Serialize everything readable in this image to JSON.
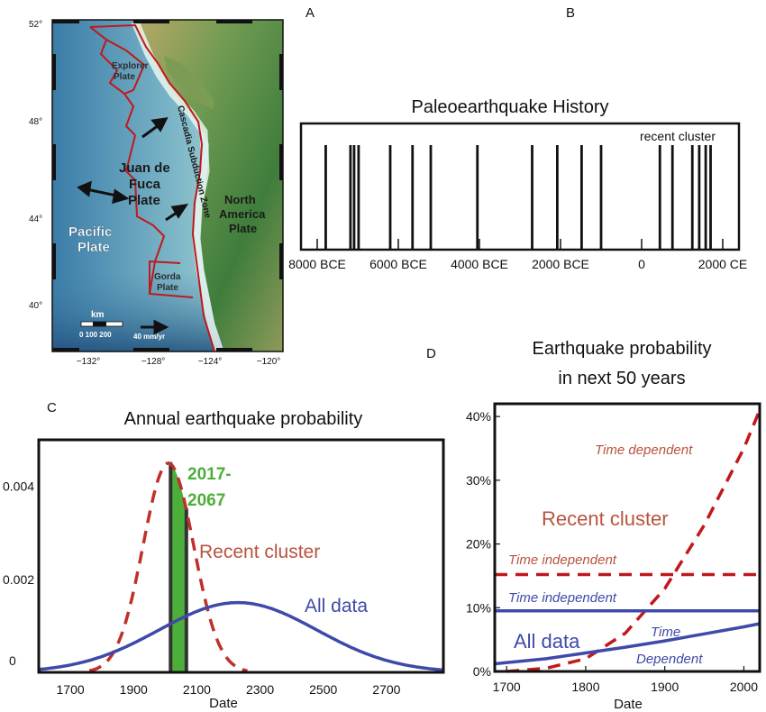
{
  "panel_letters": {
    "a": "A",
    "b": "B",
    "c": "C",
    "d": "D"
  },
  "map": {
    "lat_ticks": [
      "52°",
      "48°",
      "44°",
      "40°"
    ],
    "lon_ticks": [
      "−132°",
      "−128°",
      "−124°",
      "−120°"
    ],
    "labels": {
      "explorer": [
        "Explorer",
        "Plate"
      ],
      "juan_de_fuca": [
        "Juan de",
        "Fuca",
        "Plate"
      ],
      "pacific": [
        "Pacific",
        "Plate"
      ],
      "north_america": [
        "North",
        "America",
        "Plate"
      ],
      "gorda": [
        "Gorda",
        "Plate"
      ],
      "subduction": "Cascadia Subduction Zone",
      "scale_unit": "km",
      "scale_values": "0   100 200",
      "velocity": "40 mm/yr"
    },
    "colors": {
      "ocean_deep": "#2f6f9a",
      "ocean_shelf": "#bfe6d6",
      "land_low": "#3f7d3c",
      "land_high": "#a79a5a",
      "boundary": "#c0181c"
    }
  },
  "chart_data": [
    {
      "panel": "B",
      "type": "event-timeline",
      "title": "Paleoearthquake History",
      "annotation": "recent cluster",
      "x_tick_labels": [
        "8000 BCE",
        "6000 BCE",
        "4000 BCE",
        "2000 BCE",
        "0",
        "2000 CE"
      ],
      "x_ticks": [
        -8000,
        -6000,
        -4000,
        -2000,
        0,
        2000
      ],
      "xlim": [
        -8400,
        2400
      ],
      "events_year": [
        -7790,
        -7180,
        -7090,
        -6980,
        -6200,
        -5650,
        -5200,
        -4050,
        -2700,
        -2080,
        -1480,
        -1000,
        450,
        760,
        1250,
        1420,
        1580,
        1700
      ]
    },
    {
      "panel": "C",
      "type": "line",
      "title": "Annual earthquake probability",
      "xlabel": "Date",
      "x_tick_labels": [
        "1700",
        "1900",
        "2100",
        "2300",
        "2500",
        "2700"
      ],
      "x_ticks": [
        1700,
        1900,
        2100,
        2300,
        2500,
        2700
      ],
      "y_tick_labels": [
        "0",
        "0.002",
        "0.004"
      ],
      "y_ticks": [
        0,
        0.002,
        0.004
      ],
      "xlim": [
        1600,
        2880
      ],
      "ylim": [
        0,
        0.005
      ],
      "highlight": {
        "label_line1": "2017-",
        "label_line2": "2067",
        "x_start": 2017,
        "x_end": 2067,
        "color": "#4caf3a"
      },
      "series": [
        {
          "name": "Recent cluster",
          "style": "dashed",
          "color": "#c0302a",
          "model": "gaussian",
          "peak_x": 2010,
          "peak_y": 0.0045,
          "sigma": 80
        },
        {
          "name": "All data",
          "style": "solid",
          "color": "#3f4aa8",
          "model": "gaussian",
          "peak_x": 2230,
          "peak_y": 0.0015,
          "sigma": 250
        }
      ]
    },
    {
      "panel": "D",
      "type": "line",
      "title_lines": [
        "Earthquake probability",
        "in next 50 years"
      ],
      "xlabel": "Date",
      "x_tick_labels": [
        "1700",
        "1800",
        "1900",
        "2000"
      ],
      "x_ticks": [
        1700,
        1800,
        1900,
        2000
      ],
      "y_tick_labels": [
        "0%",
        "10%",
        "20%",
        "30%",
        "40%"
      ],
      "y_ticks": [
        0,
        10,
        20,
        30,
        40
      ],
      "xlim": [
        1685,
        2020
      ],
      "ylim": [
        0,
        42
      ],
      "group_labels": {
        "recent": "Recent cluster",
        "all": "All data"
      },
      "series": [
        {
          "name": "Time dependent",
          "group": "Recent cluster",
          "style": "dashed",
          "color": "#c0181c",
          "x": [
            1700,
            1750,
            1800,
            1850,
            1900,
            1950,
            2000,
            2020
          ],
          "y": [
            0,
            0.5,
            2,
            6,
            13,
            23,
            35,
            41
          ]
        },
        {
          "name": "Time independent",
          "group": "Recent cluster",
          "style": "dashed",
          "color": "#c0181c",
          "x": [
            1685,
            2020
          ],
          "y": [
            15.2,
            15.2
          ]
        },
        {
          "name": "Time independent",
          "group": "All data",
          "style": "solid",
          "color": "#3f4aa8",
          "x": [
            1685,
            2020
          ],
          "y": [
            9.5,
            9.5
          ]
        },
        {
          "name": "Time Dependent",
          "group": "All data",
          "style": "solid",
          "color": "#3f4aa8",
          "x": [
            1685,
            1750,
            1800,
            1850,
            1900,
            1950,
            2000,
            2020
          ],
          "y": [
            1.2,
            2,
            2.9,
            3.8,
            4.8,
            5.9,
            7.0,
            7.5
          ]
        }
      ],
      "series_labels": {
        "td_recent": "Time dependent",
        "ti_recent": "Time independent",
        "ti_all": "Time independent",
        "td_all_1": "Time",
        "td_all_2": "Dependent"
      }
    }
  ]
}
